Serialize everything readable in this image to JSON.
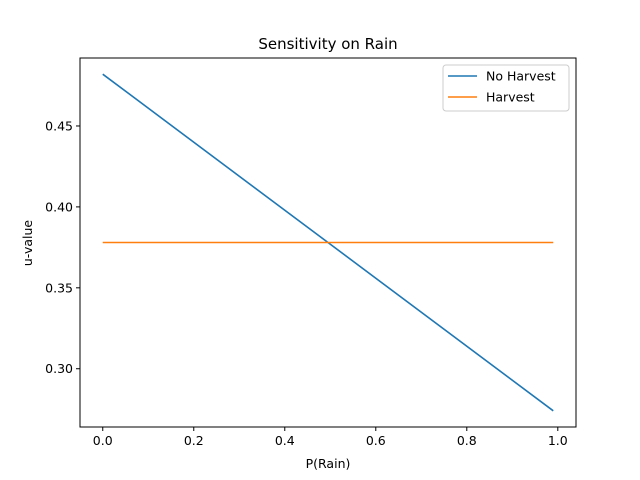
{
  "chart_data": {
    "type": "line",
    "title": "Sensitivity on Rain",
    "xlabel": "P(Rain)",
    "ylabel": "u-value",
    "xlim": [
      -0.05,
      1.04
    ],
    "ylim": [
      0.264,
      0.492
    ],
    "x_ticks": [
      0.0,
      0.2,
      0.4,
      0.6,
      0.8,
      1.0
    ],
    "x_tick_labels": [
      "0.0",
      "0.2",
      "0.4",
      "0.6",
      "0.8",
      "1.0"
    ],
    "y_ticks": [
      0.3,
      0.35,
      0.4,
      0.45
    ],
    "y_tick_labels": [
      "0.30",
      "0.35",
      "0.40",
      "0.45"
    ],
    "grid": false,
    "legend_position": "top-right",
    "series": [
      {
        "name": "No Harvest",
        "color": "#1f77b4",
        "x": [
          0.0,
          0.99
        ],
        "y": [
          0.482,
          0.274
        ]
      },
      {
        "name": "Harvest",
        "color": "#ff7f0e",
        "x": [
          0.0,
          0.99
        ],
        "y": [
          0.378,
          0.378
        ]
      }
    ]
  }
}
